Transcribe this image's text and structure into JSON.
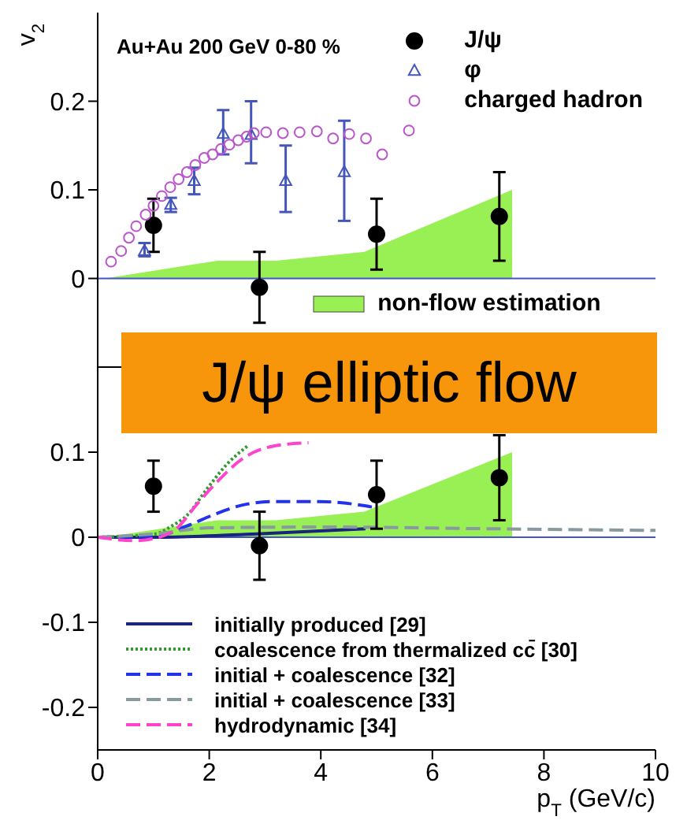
{
  "chart_data": [
    {
      "type": "scatter",
      "ylabel": "v$_{2}$",
      "annotations": [
        "Au+Au 200 GeV 0-80 %",
        "J/ψ elliptic flow"
      ],
      "xlim": [
        0,
        10
      ],
      "xticks": [
        0,
        2,
        4,
        6,
        8,
        10
      ],
      "ylim": [
        -0.1,
        0.3
      ],
      "yticks": [
        0,
        0.1,
        0.2
      ],
      "tick_labels": "y",
      "legend": "top right",
      "grid": false,
      "ref_lines": [
        {
          "axis": "y",
          "value": 0,
          "color": "#4455cc"
        }
      ],
      "series": [
        {
          "name": "J/ψ",
          "marker": "circle",
          "color": "#000000",
          "x": [
            1.0,
            2.9,
            5.0,
            7.2
          ],
          "values": [
            0.06,
            -0.01,
            0.05,
            0.07
          ],
          "errors": [
            [
              0.03,
              0.09
            ],
            [
              -0.05,
              0.03
            ],
            [
              0.01,
              0.09
            ],
            [
              0.02,
              0.12
            ]
          ]
        },
        {
          "name": "φ",
          "marker": "triangle",
          "color": "#4455bb",
          "x": [
            0.84,
            1.31,
            1.73,
            2.25,
            2.75,
            3.37,
            4.42
          ],
          "values": [
            0.031,
            0.083,
            0.11,
            0.163,
            0.162,
            0.11,
            0.12
          ],
          "errors": [
            [
              0.025,
              0.04
            ],
            [
              0.075,
              0.091
            ],
            [
              0.095,
              0.125
            ],
            [
              0.14,
              0.19
            ],
            [
              0.13,
              0.2
            ],
            [
              0.075,
              0.15
            ],
            [
              0.065,
              0.178
            ]
          ]
        },
        {
          "name": "charged hadron",
          "marker": "circle",
          "color": "#bb55cc",
          "x": [
            0.24,
            0.42,
            0.56,
            0.69,
            0.86,
            1.0,
            1.15,
            1.3,
            1.45,
            1.6,
            1.75,
            1.91,
            2.06,
            2.21,
            2.36,
            2.52,
            2.67,
            2.8,
            3.02,
            3.32,
            3.62,
            3.93,
            4.22,
            4.51,
            4.81,
            5.1,
            5.58
          ],
          "values": [
            0.019,
            0.031,
            0.046,
            0.059,
            0.072,
            0.082,
            0.093,
            0.103,
            0.112,
            0.12,
            0.128,
            0.136,
            0.14,
            0.146,
            0.151,
            0.156,
            0.16,
            0.164,
            0.165,
            0.164,
            0.165,
            0.166,
            0.158,
            0.163,
            0.158,
            0.14,
            0.167
          ]
        },
        {
          "name": "non-flow estimation",
          "type": "area",
          "color": "#99f055",
          "x": [
            0.13,
            2.14,
            3.19,
            4.78,
            7.43,
            7.43
          ],
          "values": [
            0,
            0.02,
            0.02,
            0.03,
            0.1,
            0
          ]
        }
      ]
    },
    {
      "type": "line",
      "xlabel": "p$_{T}$ (GeV/c)",
      "xlim": [
        0,
        10
      ],
      "xticks": [
        0,
        2,
        4,
        6,
        8,
        10
      ],
      "ylim": [
        -0.25,
        0.2
      ],
      "yticks": [
        -0.2,
        -0.1,
        0,
        0.1
      ],
      "legend": "bottom left",
      "grid": false,
      "ref_lines": [
        {
          "axis": "y",
          "value": 0,
          "color": "#4455cc"
        }
      ],
      "series": [
        {
          "type": "area",
          "color": "#99f055",
          "x": [
            0.13,
            2.14,
            3.19,
            4.78,
            7.43,
            7.43
          ],
          "values": [
            0,
            0.02,
            0.02,
            0.03,
            0.1,
            0
          ]
        },
        {
          "name": "initially produced [29]",
          "line_style": "solid",
          "color": "#1a237e",
          "x": [
            0,
            1.04,
            2.86,
            4.8
          ],
          "values": [
            0,
            0,
            0.004,
            0.01
          ]
        },
        {
          "name": "coalescence from thermalized cc̄ [30]",
          "line_style": "dotted",
          "color": "#339933",
          "x": [
            0,
            1.04,
            1.32,
            1.59,
            1.95,
            2.32,
            2.68
          ],
          "values": [
            0,
            0.004,
            0.013,
            0.025,
            0.056,
            0.086,
            0.107
          ]
        },
        {
          "name": "initial + coalescence [32]",
          "line_style": "dashed",
          "color": "#2233ee",
          "x": [
            0,
            1.04,
            1.59,
            2.14,
            2.68,
            3.23,
            3.96,
            4.69,
            4.96
          ],
          "values": [
            0,
            0.001,
            0.013,
            0.028,
            0.039,
            0.042,
            0.042,
            0.038,
            0.035
          ]
        },
        {
          "name": "initial + coalescence [33]",
          "line_style": "dashed",
          "color": "#8899a0",
          "x": [
            0,
            1.04,
            2,
            4,
            7,
            10
          ],
          "values": [
            0,
            0.004,
            0.011,
            0.012,
            0.01,
            0.008
          ]
        },
        {
          "name": "hydrodynamic [34]",
          "line_style": "dashed",
          "color": "#ff44cc",
          "x": [
            0,
            0.68,
            1.04,
            1.41,
            1.77,
            2.14,
            2.59,
            3.14,
            3.78
          ],
          "values": [
            0,
            -0.004,
            -0.001,
            0.01,
            0.038,
            0.065,
            0.092,
            0.107,
            0.111
          ]
        },
        {
          "type": "scatter",
          "marker": "circle",
          "color": "#000000",
          "x": [
            1.0,
            2.9,
            5.0,
            7.2
          ],
          "values": [
            0.06,
            -0.01,
            0.05,
            0.07
          ],
          "errors": [
            [
              0.03,
              0.09
            ],
            [
              -0.05,
              0.03
            ],
            [
              0.01,
              0.09
            ],
            [
              0.02,
              0.12
            ]
          ]
        }
      ]
    }
  ]
}
